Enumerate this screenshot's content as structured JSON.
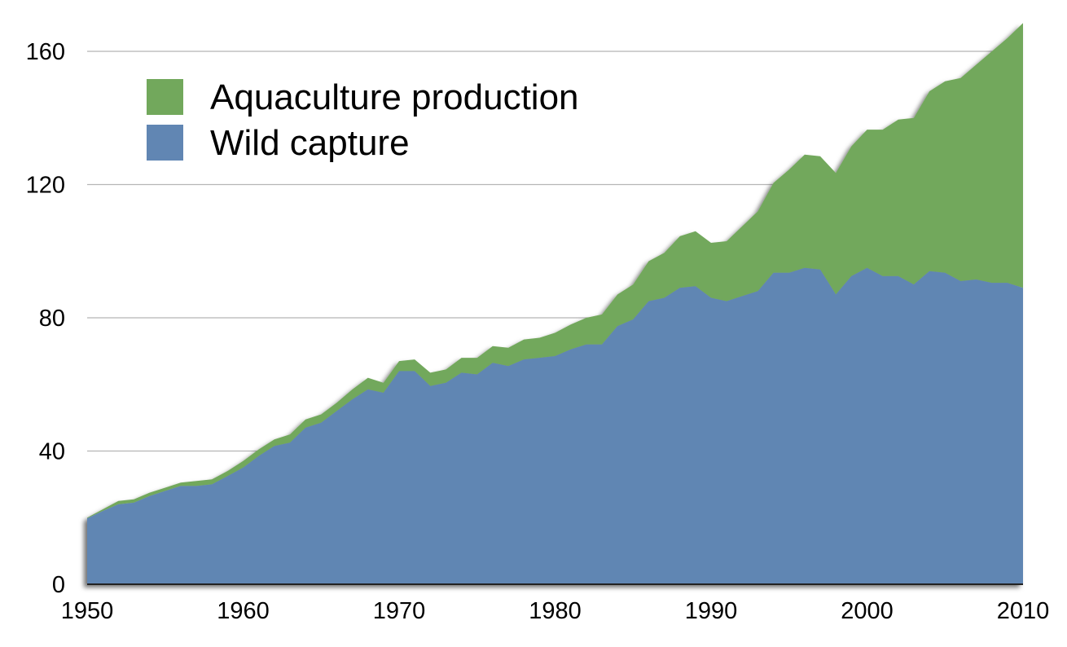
{
  "chart_data": {
    "type": "area",
    "stacked": true,
    "title": "",
    "xlabel": "",
    "ylabel": "",
    "xlim": [
      1950,
      2010
    ],
    "ylim": [
      0,
      170
    ],
    "grid": true,
    "legend_position": "top-left",
    "x_ticks": [
      "1950",
      "1960",
      "1970",
      "1980",
      "1990",
      "2000",
      "2010"
    ],
    "y_ticks": [
      "0",
      "40",
      "80",
      "120",
      "160"
    ],
    "x_start": 1950,
    "series": [
      {
        "name": "Wild capture",
        "color": "#6186b3",
        "values": [
          19.8,
          22,
          24,
          24.5,
          26.5,
          28,
          29.5,
          29.5,
          30,
          32.5,
          35,
          38.5,
          41.5,
          42.5,
          47,
          48.5,
          52,
          55.5,
          58.5,
          57.5,
          64,
          64,
          59.5,
          60.5,
          63.5,
          63,
          66.5,
          65.5,
          67.5,
          68,
          68.5,
          70.5,
          72,
          72,
          77.5,
          79.5,
          85,
          86,
          89,
          89.5,
          86,
          85,
          86.5,
          88,
          93.5,
          93.5,
          95,
          94.5,
          87,
          92.5,
          95,
          92.5,
          92.5,
          90,
          94,
          93.5,
          91,
          91.5,
          90.5,
          90.5,
          89
        ]
      },
      {
        "name": "Aquaculture production",
        "color": "#72a85c",
        "values": [
          0.2,
          0.5,
          1,
          1,
          1,
          1,
          1,
          1.5,
          1.5,
          1.5,
          2,
          2,
          2,
          2.5,
          2.5,
          2.5,
          2.5,
          3,
          3.5,
          3,
          3,
          3.5,
          4,
          4,
          4.5,
          5,
          5,
          5.5,
          6,
          6,
          7,
          7.5,
          8,
          9,
          9.5,
          10.5,
          12,
          13.5,
          15.5,
          16.5,
          16.5,
          18,
          21,
          24,
          27,
          31,
          34,
          34,
          36.5,
          39,
          41.5,
          44,
          47,
          50,
          54,
          57.5,
          61,
          64.5,
          69.5,
          73.5,
          79.5
        ]
      }
    ],
    "legend": [
      "Aquaculture production",
      "Wild capture"
    ]
  }
}
